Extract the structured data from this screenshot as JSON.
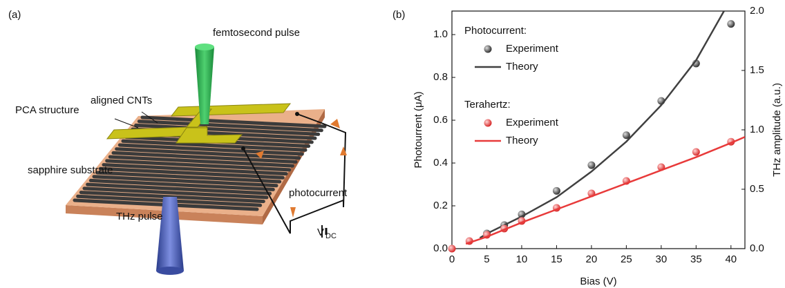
{
  "diagram": {
    "panel_label": "(a)",
    "femtosecond": "femtosecond pulse",
    "cnts": "aligned CNTs",
    "pca": "PCA structure",
    "substrate": "sapphire substrate",
    "photocurrent": "photocurrent",
    "thz": "THz pulse",
    "vdc": "V",
    "vdc_sub": "DC"
  },
  "chart_data": {
    "type": "scatter",
    "panel_label": "(b)",
    "xlabel": "Bias (V)",
    "ylabel": "Photourrent (μA)",
    "y2label": "THz amplitude (a.u.)",
    "xlim": [
      0,
      42
    ],
    "xticks": [
      0,
      5,
      10,
      15,
      20,
      25,
      30,
      35,
      40
    ],
    "ylim": [
      0,
      1.11
    ],
    "yticks": [
      {
        "value": 0,
        "label": "0.0"
      },
      0.2,
      0.4,
      0.6,
      0.8,
      {
        "value": 1,
        "label": "1.0"
      }
    ],
    "y2lim": [
      0,
      2
    ],
    "y2ticks": [
      {
        "value": 0,
        "label": "0.0"
      },
      0.5,
      {
        "value": 1,
        "label": "1.0"
      },
      1.5,
      {
        "value": 2,
        "label": "2.0"
      }
    ],
    "legend_groups": [
      "Photocurrent:",
      "Terahertz:"
    ],
    "series": [
      {
        "name": "Experiment",
        "group": 0,
        "style": "points",
        "color": "#404040",
        "x": [
          5,
          7.5,
          10,
          15,
          20,
          25,
          30,
          35,
          40
        ],
        "values": [
          0.071,
          0.11,
          0.16,
          0.27,
          0.39,
          0.53,
          0.69,
          0.865,
          1.05
        ]
      },
      {
        "name": "Theory",
        "group": 0,
        "style": "line",
        "color": "#404040",
        "x": [
          4,
          5,
          10,
          15,
          20,
          25,
          30,
          35,
          39
        ],
        "values": [
          0.05,
          0.07,
          0.15,
          0.24,
          0.36,
          0.5,
          0.67,
          0.88,
          1.11
        ]
      },
      {
        "name": "Experiment",
        "group": 1,
        "style": "points",
        "axis": "y2",
        "color": "#e83a3a",
        "x": [
          0,
          2.5,
          5,
          7.5,
          10,
          15,
          20,
          25,
          30,
          35,
          40
        ],
        "values": [
          0,
          0.064,
          0.116,
          0.169,
          0.233,
          0.343,
          0.465,
          0.57,
          0.686,
          0.814,
          0.9
        ]
      },
      {
        "name": "Theory",
        "group": 1,
        "style": "line",
        "axis": "y2",
        "color": "#e83a3a",
        "x": [
          2,
          5,
          10,
          15,
          20,
          25,
          30,
          35,
          40,
          42
        ],
        "values": [
          0.04,
          0.1,
          0.22,
          0.33,
          0.44,
          0.55,
          0.66,
          0.77,
          0.89,
          0.94
        ]
      }
    ]
  }
}
